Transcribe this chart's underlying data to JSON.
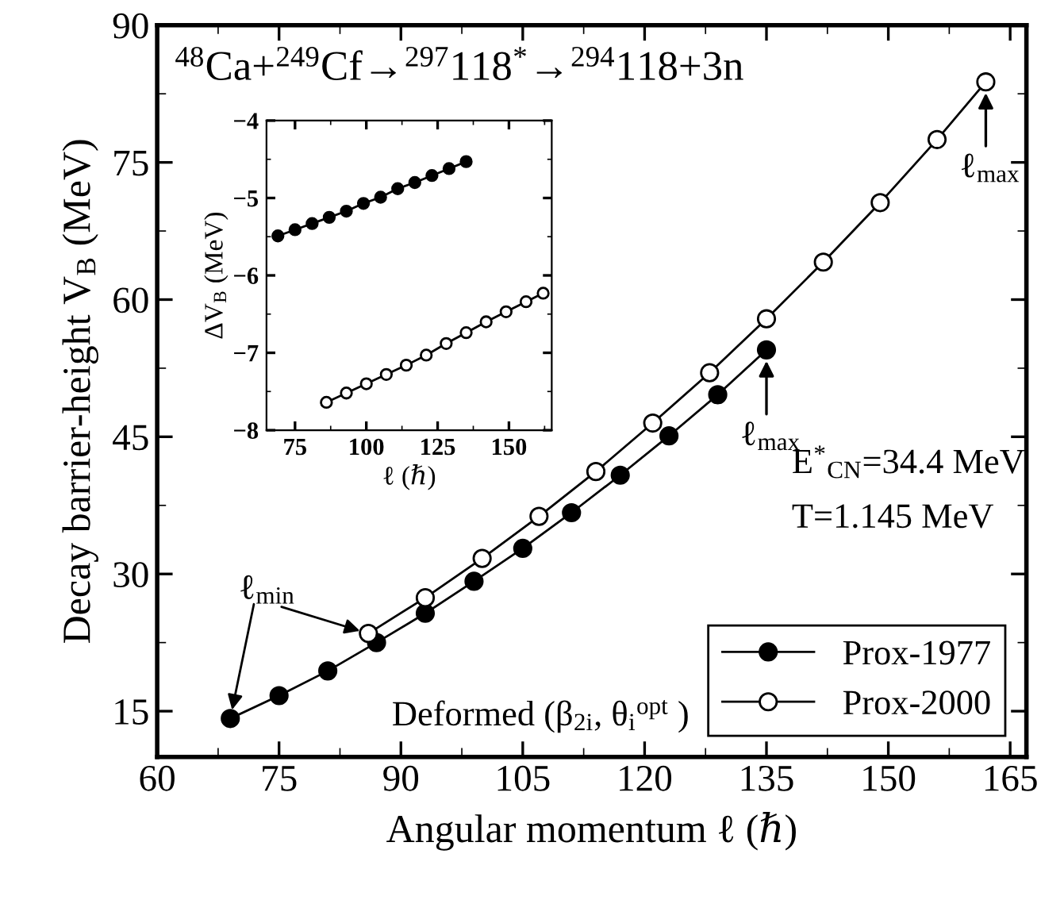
{
  "chart_data": [
    {
      "type": "line",
      "title": "$^{48}$Ca+$^{249}$Cf→$^{297}$118$^{*}$→$^{294}$118+3n",
      "xlabel": "Angular momentum ℓ (ℏ)",
      "ylabel": "Decay barrier-height V$_{B}$ (MeV)",
      "xlim": [
        60,
        167
      ],
      "ylim": [
        10,
        90
      ],
      "xticks": [
        60,
        75,
        90,
        105,
        120,
        135,
        150,
        165
      ],
      "yticks": [
        15,
        30,
        45,
        60,
        75,
        90
      ],
      "marker": "circle",
      "line_style": "solid",
      "legend": "bottom right",
      "grid": false,
      "series": [
        {
          "name": "Prox-1977",
          "color": "#000000",
          "x": [
            69,
            75,
            81,
            87,
            93,
            99,
            105,
            111,
            117,
            123,
            129,
            135
          ],
          "values": [
            14.2,
            16.7,
            19.4,
            22.5,
            25.7,
            29.2,
            32.8,
            36.7,
            40.8,
            45.1,
            49.6,
            54.5
          ]
        },
        {
          "name": "Prox-2000",
          "color": "#ffffff",
          "x": [
            86,
            93,
            100,
            107,
            114,
            121,
            128,
            135,
            142,
            149,
            156,
            162
          ],
          "values": [
            23.5,
            27.4,
            31.7,
            36.3,
            41.2,
            46.5,
            52.0,
            57.9,
            64.1,
            70.6,
            77.5,
            83.8
          ]
        }
      ],
      "annotations": [
        {
          "text": "ℓ$_{max}$",
          "x": 162,
          "y": 83.8
        },
        {
          "text": "ℓ$_{max}$",
          "x": 135,
          "y": 54.5
        },
        {
          "text": "ℓ$_{min}$",
          "x": 69,
          "y": 14.2
        },
        "E$^{*}$$_{CN}$=34.4 MeV",
        "T=1.145 MeV",
        "Deformed (β$_{2i}$, θ$_{i}$$^{opt}$ )"
      ]
    },
    {
      "type": "line",
      "xlabel": "ℓ (ℏ)",
      "ylabel": "ΔV$_{B}$ (MeV)",
      "xlim": [
        65,
        165
      ],
      "ylim": [
        -8,
        -4
      ],
      "xticks": [
        75,
        100,
        125,
        150
      ],
      "yticks": [
        -8,
        -7,
        -6,
        -5,
        -4
      ],
      "marker": "circle",
      "line_style": "solid",
      "grid": false,
      "series": [
        {
          "color": "#000000",
          "x": [
            69,
            75,
            81,
            87,
            93,
            99,
            105,
            111,
            117,
            123,
            129,
            135
          ],
          "values": [
            -5.49,
            -5.41,
            -5.33,
            -5.25,
            -5.17,
            -5.07,
            -4.99,
            -4.88,
            -4.8,
            -4.71,
            -4.62,
            -4.53
          ]
        },
        {
          "color": "#ffffff",
          "x": [
            86,
            93,
            100,
            107,
            114,
            121,
            128,
            135,
            142,
            149,
            156,
            162
          ],
          "values": [
            -7.64,
            -7.52,
            -7.4,
            -7.28,
            -7.16,
            -7.03,
            -6.88,
            -6.74,
            -6.6,
            -6.47,
            -6.34,
            -6.23
          ]
        }
      ]
    }
  ]
}
